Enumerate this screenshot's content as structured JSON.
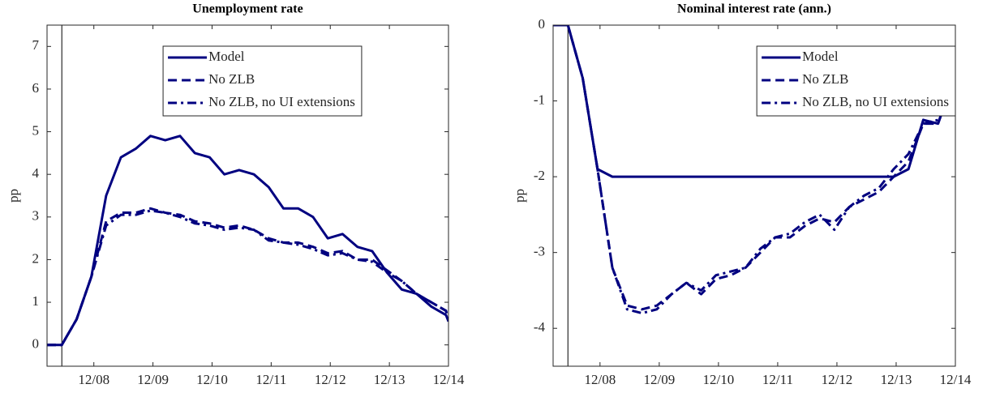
{
  "chart_data": [
    {
      "type": "line",
      "title": "Unemployment rate",
      "ylabel": "pp",
      "x": [
        2008.125,
        2008.375,
        2008.625,
        2008.875,
        2009.125,
        2009.375,
        2009.625,
        2009.875,
        2010.125,
        2010.375,
        2010.625,
        2010.875,
        2011.125,
        2011.375,
        2011.625,
        2011.875,
        2012.125,
        2012.375,
        2012.625,
        2012.875,
        2013.125,
        2013.375,
        2013.625,
        2013.875,
        2014.125,
        2014.375,
        2014.625,
        2014.875,
        2014.917
      ],
      "series": [
        {
          "name": "Model",
          "color": "#000080",
          "dash": "solid",
          "values": [
            0,
            0,
            0.6,
            1.6,
            3.5,
            4.4,
            4.6,
            4.9,
            4.8,
            4.9,
            4.5,
            4.4,
            4.0,
            4.1,
            4.0,
            3.7,
            3.2,
            3.2,
            3.0,
            2.5,
            2.6,
            2.3,
            2.2,
            1.7,
            1.3,
            1.2,
            0.9,
            0.7,
            0.55
          ]
        },
        {
          "name": "No ZLB",
          "color": "#000080",
          "dash": "dashed",
          "values": [
            0,
            0,
            0.6,
            1.6,
            2.9,
            3.1,
            3.1,
            3.2,
            3.1,
            3.05,
            2.9,
            2.85,
            2.75,
            2.8,
            2.7,
            2.5,
            2.4,
            2.4,
            2.3,
            2.15,
            2.2,
            2.0,
            2.0,
            1.75,
            1.5,
            1.2,
            1.0,
            0.8,
            0.55
          ]
        },
        {
          "name": "No ZLB, no UI extensions",
          "color": "#000080",
          "dash": "dashdot",
          "values": [
            0,
            0,
            0.6,
            1.6,
            2.8,
            3.05,
            3.05,
            3.15,
            3.1,
            3.0,
            2.85,
            2.8,
            2.7,
            2.75,
            2.7,
            2.45,
            2.4,
            2.35,
            2.25,
            2.1,
            2.15,
            2.0,
            1.95,
            1.7,
            1.5,
            1.2,
            1.0,
            0.8,
            0.55
          ]
        }
      ],
      "vline": 2008.375,
      "xlim": [
        2008.125,
        2014.917
      ],
      "xticks": [
        {
          "value": 2008.917,
          "label": "12/08"
        },
        {
          "value": 2009.917,
          "label": "12/09"
        },
        {
          "value": 2010.917,
          "label": "12/10"
        },
        {
          "value": 2011.917,
          "label": "12/11"
        },
        {
          "value": 2012.917,
          "label": "12/12"
        },
        {
          "value": 2013.917,
          "label": "12/13"
        },
        {
          "value": 2014.917,
          "label": "12/14"
        }
      ],
      "ylim": [
        -0.5,
        7.5
      ],
      "yticks": [
        0,
        1,
        2,
        3,
        4,
        5,
        6,
        7
      ],
      "legend": "upper center"
    },
    {
      "type": "line",
      "title": "Nominal interest rate (ann.)",
      "ylabel": "pp",
      "x": [
        2008.125,
        2008.375,
        2008.625,
        2008.875,
        2009.125,
        2009.375,
        2009.625,
        2009.875,
        2010.125,
        2010.375,
        2010.625,
        2010.875,
        2011.125,
        2011.375,
        2011.625,
        2011.875,
        2012.125,
        2012.375,
        2012.625,
        2012.875,
        2013.125,
        2013.375,
        2013.625,
        2013.875,
        2014.125,
        2014.375,
        2014.625,
        2014.875,
        2014.917
      ],
      "series": [
        {
          "name": "Model",
          "color": "#000080",
          "dash": "solid",
          "values": [
            0,
            0,
            -0.7,
            -1.9,
            -2,
            -2,
            -2,
            -2,
            -2,
            -2,
            -2,
            -2,
            -2,
            -2,
            -2,
            -2,
            -2,
            -2,
            -2,
            -2,
            -2,
            -2,
            -2,
            -2,
            -1.9,
            -1.25,
            -1.3,
            -0.75,
            -0.55
          ]
        },
        {
          "name": "No ZLB",
          "color": "#000080",
          "dash": "dashed",
          "values": [
            0,
            0,
            -0.7,
            -1.9,
            -3.2,
            -3.7,
            -3.75,
            -3.7,
            -3.55,
            -3.4,
            -3.55,
            -3.35,
            -3.3,
            -3.2,
            -3.0,
            -2.8,
            -2.8,
            -2.65,
            -2.55,
            -2.6,
            -2.4,
            -2.3,
            -2.2,
            -2.0,
            -1.8,
            -1.3,
            -1.3,
            -0.7,
            -0.55
          ]
        },
        {
          "name": "No ZLB, no UI extensions",
          "color": "#000080",
          "dash": "dashdot",
          "values": [
            0,
            0,
            -0.7,
            -1.9,
            -3.2,
            -3.75,
            -3.8,
            -3.75,
            -3.55,
            -3.4,
            -3.5,
            -3.3,
            -3.25,
            -3.2,
            -2.95,
            -2.8,
            -2.75,
            -2.6,
            -2.5,
            -2.7,
            -2.4,
            -2.25,
            -2.15,
            -1.9,
            -1.7,
            -1.3,
            -1.25,
            -0.7,
            -0.55
          ]
        }
      ],
      "vline": 2008.375,
      "xlim": [
        2008.125,
        2014.917
      ],
      "xticks": [
        {
          "value": 2008.917,
          "label": "12/08"
        },
        {
          "value": 2009.917,
          "label": "12/09"
        },
        {
          "value": 2010.917,
          "label": "12/10"
        },
        {
          "value": 2011.917,
          "label": "12/11"
        },
        {
          "value": 2012.917,
          "label": "12/12"
        },
        {
          "value": 2013.917,
          "label": "12/13"
        },
        {
          "value": 2014.917,
          "label": "12/14"
        }
      ],
      "ylim": [
        -4.5,
        0
      ],
      "yticks": [
        -4,
        -3,
        -2,
        -1,
        0
      ],
      "legend": "upper right"
    }
  ]
}
